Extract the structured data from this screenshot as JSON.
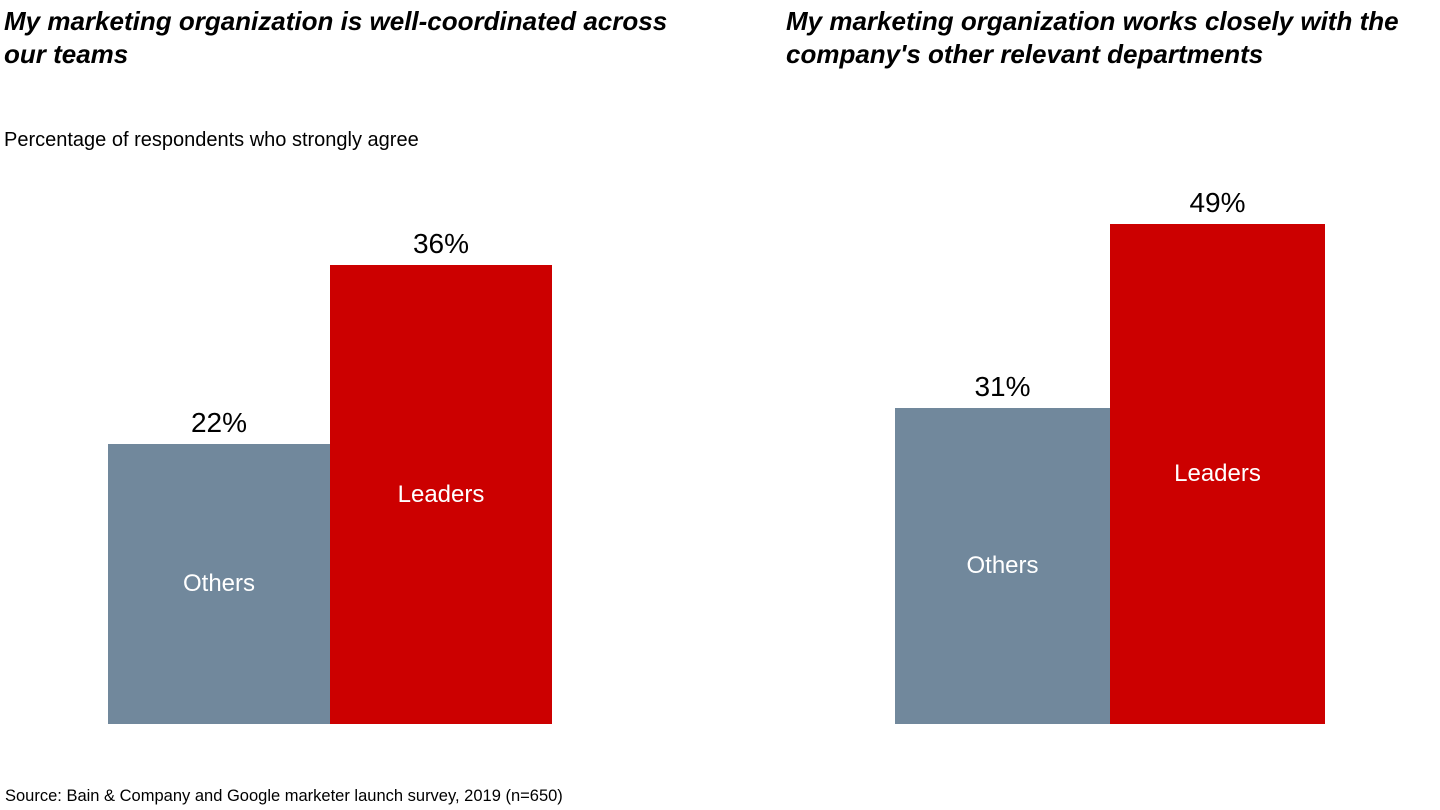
{
  "page": {
    "subtitle": "Percentage of respondents who strongly agree",
    "source": "Source: Bain & Company and Google marketer launch survey, 2019 (n=650)"
  },
  "colors": {
    "others_bar": "#71889C",
    "leaders_bar": "#CC0000",
    "bar_label_text": "#FFFFFF",
    "value_label_text": "#000000",
    "title_text": "#000000"
  },
  "chart_data": [
    {
      "type": "bar",
      "title": "My marketing organization is well-coordinated across our teams",
      "categories": [
        "Others",
        "Leaders"
      ],
      "values": [
        22,
        36
      ],
      "value_labels": [
        "22%",
        "36%"
      ],
      "bar_colors": [
        "#71889C",
        "#CC0000"
      ],
      "ylim": [
        0,
        40
      ],
      "xlabel": "",
      "ylabel": "",
      "grid": false,
      "legend_position": "none",
      "notes": "category labels shown in white inside bars; value labels above bars"
    },
    {
      "type": "bar",
      "title": "My marketing organization works closely with the company's other relevant departments",
      "categories": [
        "Others",
        "Leaders"
      ],
      "values": [
        31,
        49
      ],
      "value_labels": [
        "31%",
        "49%"
      ],
      "bar_colors": [
        "#71889C",
        "#CC0000"
      ],
      "ylim": [
        0,
        50
      ],
      "xlabel": "",
      "ylabel": "",
      "grid": false,
      "legend_position": "none",
      "notes": "category labels shown in white inside bars; value labels above bars"
    }
  ]
}
